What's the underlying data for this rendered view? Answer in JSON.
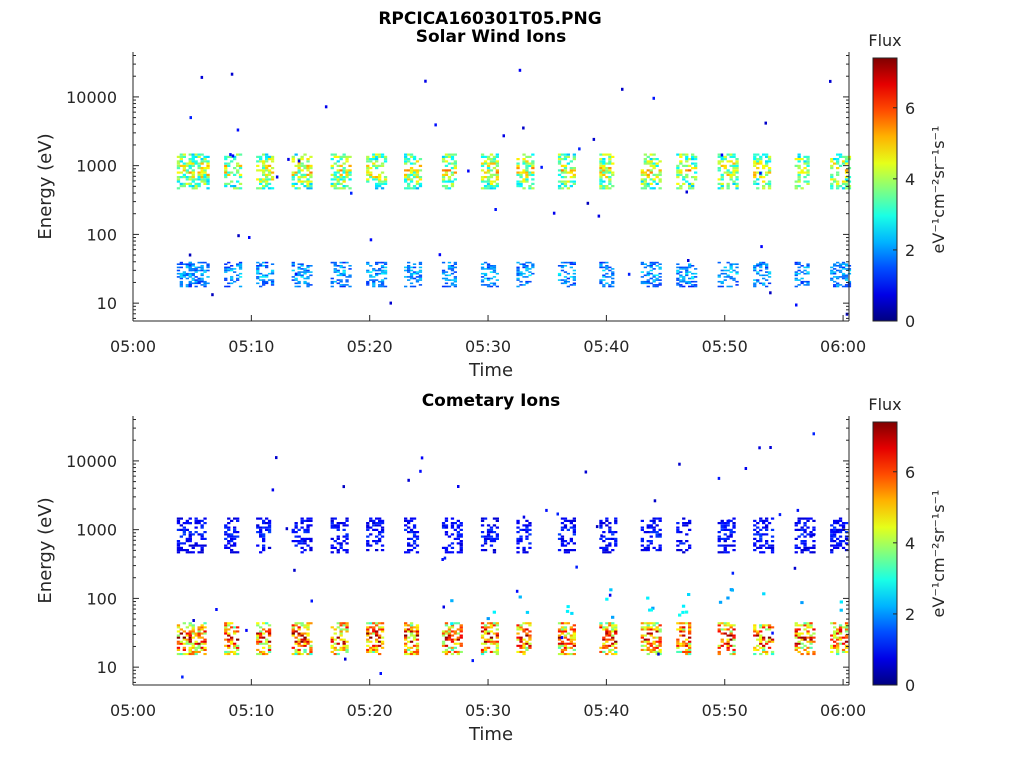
{
  "figure_title": "RPCICA160301T05.PNG",
  "chart_data": [
    {
      "type": "heatmap",
      "title": "Solar Wind Ions",
      "xlabel": "Time",
      "ylabel": "Energy (eV)",
      "x_ticks": [
        "05:00",
        "05:10",
        "05:20",
        "05:30",
        "05:40",
        "05:50",
        "06:00"
      ],
      "xlim_minutes": [
        0,
        60.5
      ],
      "y_scale": "log",
      "ylim": [
        5.5,
        45000
      ],
      "y_ticks": [
        10,
        100,
        1000,
        10000
      ],
      "y_tick_labels": [
        "10",
        "100",
        "1000",
        "10000"
      ],
      "colorbar": {
        "label": "Flux",
        "unit": "eV⁻¹cm⁻²sr⁻¹s⁻¹",
        "range": [
          0,
          7.4
        ],
        "ticks": [
          "0",
          "2",
          "4",
          "6"
        ],
        "colormap": "jet"
      },
      "scan_minutes": [
        4.3,
        5.3,
        8.3,
        11.0,
        14.0,
        17.3,
        20.3,
        23.5,
        26.7,
        30.0,
        33.0,
        36.5,
        40.0,
        43.5,
        46.5,
        50.0,
        53.0,
        56.5,
        59.5
      ],
      "bands": [
        {
          "name": "high",
          "energy_min": 450,
          "energy_max": 1500,
          "typical_flux": 4.0
        },
        {
          "name": "low",
          "energy_min": 17,
          "energy_max": 40,
          "typical_flux": 2.0
        }
      ]
    },
    {
      "type": "heatmap",
      "title": "Cometary Ions",
      "xlabel": "Time",
      "ylabel": "Energy (eV)",
      "x_ticks": [
        "05:00",
        "05:10",
        "05:20",
        "05:30",
        "05:40",
        "05:50",
        "06:00"
      ],
      "xlim_minutes": [
        0,
        60.5
      ],
      "y_scale": "log",
      "ylim": [
        5.5,
        45000
      ],
      "y_ticks": [
        10,
        100,
        1000,
        10000
      ],
      "y_tick_labels": [
        "10",
        "100",
        "1000",
        "10000"
      ],
      "colorbar": {
        "label": "Flux",
        "unit": "eV⁻¹cm⁻²sr⁻¹s⁻¹",
        "range": [
          0,
          7.4
        ],
        "ticks": [
          "0",
          "2",
          "4",
          "6"
        ],
        "colormap": "jet"
      },
      "scan_minutes": [
        4.3,
        5.3,
        8.3,
        11.0,
        14.0,
        17.3,
        20.3,
        23.5,
        26.7,
        30.0,
        33.0,
        36.5,
        40.0,
        43.5,
        46.5,
        50.0,
        53.0,
        56.5,
        59.5
      ],
      "bands": [
        {
          "name": "high",
          "energy_min": 450,
          "energy_max": 1500,
          "typical_flux": 1.0
        },
        {
          "name": "low",
          "energy_min": 15,
          "energy_max": 45,
          "typical_flux": 5.5
        }
      ]
    }
  ]
}
